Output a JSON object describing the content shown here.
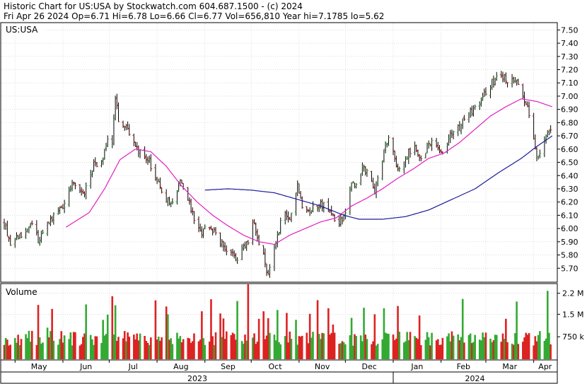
{
  "header": {
    "line1": "Historic Chart for US:USA by Stockwatch.com 604.687.1500 - (c) 2024",
    "line2": "Fri Apr 26 2024   Op=6.71   Hi=6.78   Lo=6.66   Cl=6.77   Vol=656,810   Year hi=7.1785   lo=5.62"
  },
  "chart_data": [
    {
      "type": "ohlc",
      "symbol_label": "US:USA",
      "y_ticks": [
        "5.70",
        "5.80",
        "5.90",
        "6.00",
        "6.10",
        "6.20",
        "6.30",
        "6.40",
        "6.50",
        "6.60",
        "6.70",
        "6.80",
        "6.90",
        "7.00",
        "7.10",
        "7.20",
        "7.30",
        "7.40",
        "7.50"
      ],
      "ylim": [
        5.6,
        7.55
      ],
      "x_months": [
        "May",
        "Jun",
        "Jul",
        "Aug",
        "Sep",
        "Oct",
        "Nov",
        "Dec",
        "Jan",
        "Feb",
        "Mar",
        "Apr"
      ],
      "x_years": [
        "2023",
        "2024"
      ],
      "close_keypoints": [
        {
          "d": 0,
          "v": 6.05
        },
        {
          "d": 4,
          "v": 5.88
        },
        {
          "d": 10,
          "v": 5.95
        },
        {
          "d": 18,
          "v": 6.02
        },
        {
          "d": 22,
          "v": 5.92
        },
        {
          "d": 30,
          "v": 6.08
        },
        {
          "d": 38,
          "v": 6.18
        },
        {
          "d": 44,
          "v": 6.32
        },
        {
          "d": 52,
          "v": 6.28
        },
        {
          "d": 58,
          "v": 6.5
        },
        {
          "d": 62,
          "v": 6.45
        },
        {
          "d": 68,
          "v": 6.72
        },
        {
          "d": 70,
          "v": 6.62
        },
        {
          "d": 72,
          "v": 6.98
        },
        {
          "d": 74,
          "v": 6.82
        },
        {
          "d": 80,
          "v": 6.75
        },
        {
          "d": 86,
          "v": 6.6
        },
        {
          "d": 92,
          "v": 6.55
        },
        {
          "d": 98,
          "v": 6.4
        },
        {
          "d": 104,
          "v": 6.22
        },
        {
          "d": 110,
          "v": 6.2
        },
        {
          "d": 114,
          "v": 6.35
        },
        {
          "d": 118,
          "v": 6.25
        },
        {
          "d": 122,
          "v": 6.1
        },
        {
          "d": 128,
          "v": 5.98
        },
        {
          "d": 134,
          "v": 6.02
        },
        {
          "d": 140,
          "v": 5.88
        },
        {
          "d": 146,
          "v": 5.82
        },
        {
          "d": 150,
          "v": 5.76
        },
        {
          "d": 154,
          "v": 5.85
        },
        {
          "d": 158,
          "v": 5.9
        },
        {
          "d": 161,
          "v": 6.05
        },
        {
          "d": 164,
          "v": 5.95
        },
        {
          "d": 168,
          "v": 5.78
        },
        {
          "d": 171,
          "v": 5.64
        },
        {
          "d": 174,
          "v": 5.78
        },
        {
          "d": 178,
          "v": 6.0
        },
        {
          "d": 181,
          "v": 6.12
        },
        {
          "d": 184,
          "v": 6.05
        },
        {
          "d": 188,
          "v": 6.18
        },
        {
          "d": 190,
          "v": 6.32
        },
        {
          "d": 194,
          "v": 6.12
        },
        {
          "d": 200,
          "v": 6.15
        },
        {
          "d": 206,
          "v": 6.18
        },
        {
          "d": 212,
          "v": 6.12
        },
        {
          "d": 216,
          "v": 6.05
        },
        {
          "d": 220,
          "v": 6.08
        },
        {
          "d": 224,
          "v": 6.3
        },
        {
          "d": 228,
          "v": 6.35
        },
        {
          "d": 232,
          "v": 6.45
        },
        {
          "d": 236,
          "v": 6.42
        },
        {
          "d": 240,
          "v": 6.28
        },
        {
          "d": 244,
          "v": 6.5
        },
        {
          "d": 248,
          "v": 6.65
        },
        {
          "d": 250,
          "v": 6.68
        },
        {
          "d": 254,
          "v": 6.45
        },
        {
          "d": 258,
          "v": 6.42
        },
        {
          "d": 262,
          "v": 6.58
        },
        {
          "d": 266,
          "v": 6.6
        },
        {
          "d": 270,
          "v": 6.52
        },
        {
          "d": 274,
          "v": 6.62
        },
        {
          "d": 278,
          "v": 6.65
        },
        {
          "d": 282,
          "v": 6.58
        },
        {
          "d": 286,
          "v": 6.6
        },
        {
          "d": 290,
          "v": 6.72
        },
        {
          "d": 294,
          "v": 6.75
        },
        {
          "d": 298,
          "v": 6.82
        },
        {
          "d": 302,
          "v": 6.88
        },
        {
          "d": 306,
          "v": 6.9
        },
        {
          "d": 310,
          "v": 7.0
        },
        {
          "d": 314,
          "v": 7.08
        },
        {
          "d": 318,
          "v": 7.12
        },
        {
          "d": 322,
          "v": 7.15
        },
        {
          "d": 326,
          "v": 7.1
        },
        {
          "d": 330,
          "v": 7.12
        },
        {
          "d": 334,
          "v": 7.08
        },
        {
          "d": 338,
          "v": 6.95
        },
        {
          "d": 341,
          "v": 6.78
        },
        {
          "d": 345,
          "v": 6.55
        },
        {
          "d": 348,
          "v": 6.6
        },
        {
          "d": 351,
          "v": 6.72
        },
        {
          "d": 355,
          "v": 6.77
        }
      ],
      "ma_fast_keypoints": [
        {
          "d": 40,
          "v": 6.01
        },
        {
          "d": 55,
          "v": 6.12
        },
        {
          "d": 65,
          "v": 6.3
        },
        {
          "d": 75,
          "v": 6.52
        },
        {
          "d": 85,
          "v": 6.6
        },
        {
          "d": 95,
          "v": 6.58
        },
        {
          "d": 105,
          "v": 6.47
        },
        {
          "d": 115,
          "v": 6.32
        },
        {
          "d": 125,
          "v": 6.2
        },
        {
          "d": 135,
          "v": 6.1
        },
        {
          "d": 145,
          "v": 6.02
        },
        {
          "d": 155,
          "v": 5.95
        },
        {
          "d": 165,
          "v": 5.9
        },
        {
          "d": 175,
          "v": 5.88
        },
        {
          "d": 185,
          "v": 5.95
        },
        {
          "d": 195,
          "v": 6.0
        },
        {
          "d": 205,
          "v": 6.05
        },
        {
          "d": 215,
          "v": 6.08
        },
        {
          "d": 225,
          "v": 6.17
        },
        {
          "d": 235,
          "v": 6.23
        },
        {
          "d": 245,
          "v": 6.3
        },
        {
          "d": 255,
          "v": 6.38
        },
        {
          "d": 265,
          "v": 6.45
        },
        {
          "d": 275,
          "v": 6.53
        },
        {
          "d": 285,
          "v": 6.57
        },
        {
          "d": 295,
          "v": 6.65
        },
        {
          "d": 305,
          "v": 6.75
        },
        {
          "d": 315,
          "v": 6.85
        },
        {
          "d": 325,
          "v": 6.92
        },
        {
          "d": 335,
          "v": 6.98
        },
        {
          "d": 345,
          "v": 6.96
        },
        {
          "d": 355,
          "v": 6.92
        }
      ],
      "ma_slow_keypoints": [
        {
          "d": 130,
          "v": 6.29
        },
        {
          "d": 145,
          "v": 6.3
        },
        {
          "d": 160,
          "v": 6.29
        },
        {
          "d": 175,
          "v": 6.27
        },
        {
          "d": 190,
          "v": 6.22
        },
        {
          "d": 205,
          "v": 6.17
        },
        {
          "d": 220,
          "v": 6.1
        },
        {
          "d": 230,
          "v": 6.07
        },
        {
          "d": 245,
          "v": 6.07
        },
        {
          "d": 260,
          "v": 6.09
        },
        {
          "d": 275,
          "v": 6.14
        },
        {
          "d": 290,
          "v": 6.22
        },
        {
          "d": 305,
          "v": 6.3
        },
        {
          "d": 320,
          "v": 6.42
        },
        {
          "d": 335,
          "v": 6.53
        },
        {
          "d": 345,
          "v": 6.62
        },
        {
          "d": 355,
          "v": 6.7
        }
      ]
    },
    {
      "type": "bar",
      "title": "Volume",
      "y_ticks": [
        "750 k",
        "1.5 M",
        "2.2 M"
      ],
      "ylim": [
        0,
        2500000
      ]
    }
  ],
  "colors": {
    "up": "#44bb44",
    "down": "#dd2222",
    "bar_up": "#33aa33",
    "bar_down": "#dd2222",
    "ma_fast": "#e020c0",
    "ma_slow": "#1a1a9a",
    "grid": "#c8c8c8"
  }
}
